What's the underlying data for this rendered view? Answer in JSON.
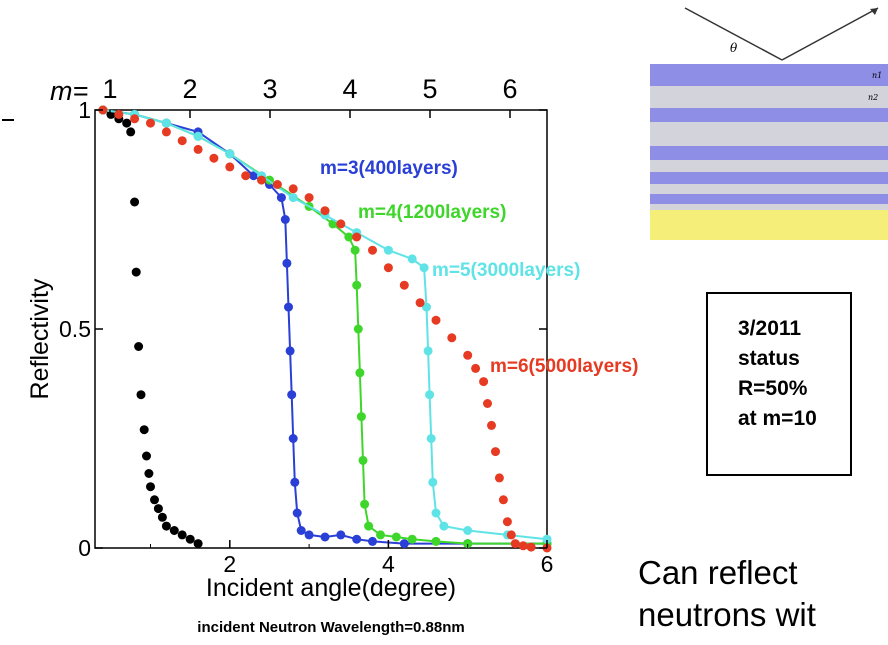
{
  "chart_data": {
    "type": "scatter",
    "title": "",
    "xlabel": "Incident angle(degree)",
    "ylabel": "Reflectivity",
    "xlim": [
      0.3,
      6.0
    ],
    "ylim": [
      0,
      1.0
    ],
    "x_ticks": [
      2,
      4,
      6
    ],
    "y_ticks": [
      0,
      0.5,
      1
    ],
    "y_tick_labels": [
      "0",
      "0.5",
      "1"
    ],
    "top_axis_prefix": "m=",
    "top_axis_ticks": [
      {
        "label": "1",
        "x": 0.59
      },
      {
        "label": "2",
        "x": 1.18
      },
      {
        "label": "3",
        "x": 1.77
      },
      {
        "label": "4",
        "x": 2.36
      },
      {
        "label": "5",
        "x": 2.95
      },
      {
        "label": "6",
        "x": 3.54
      }
    ],
    "note": "incident Neutron Wavelength=0.88nm",
    "grid": false,
    "series": [
      {
        "name": "",
        "color": "#000000",
        "style": "points",
        "points": [
          [
            0.4,
            1.0
          ],
          [
            0.5,
            0.99
          ],
          [
            0.6,
            0.98
          ],
          [
            0.7,
            0.97
          ],
          [
            0.75,
            0.95
          ],
          [
            0.8,
            0.79
          ],
          [
            0.82,
            0.63
          ],
          [
            0.85,
            0.46
          ],
          [
            0.88,
            0.35
          ],
          [
            0.92,
            0.27
          ],
          [
            0.95,
            0.21
          ],
          [
            0.98,
            0.17
          ],
          [
            1.0,
            0.14
          ],
          [
            1.05,
            0.11
          ],
          [
            1.1,
            0.09
          ],
          [
            1.15,
            0.07
          ],
          [
            1.2,
            0.05
          ],
          [
            1.3,
            0.04
          ],
          [
            1.4,
            0.03
          ],
          [
            1.5,
            0.02
          ],
          [
            1.6,
            0.01
          ]
        ]
      },
      {
        "name": "m=3(400layers)",
        "color": "#2a3fd6",
        "style": "line+points",
        "points": [
          [
            0.4,
            1.0
          ],
          [
            0.8,
            0.99
          ],
          [
            1.2,
            0.97
          ],
          [
            1.6,
            0.95
          ],
          [
            2.0,
            0.9
          ],
          [
            2.3,
            0.85
          ],
          [
            2.5,
            0.83
          ],
          [
            2.65,
            0.8
          ],
          [
            2.7,
            0.75
          ],
          [
            2.72,
            0.65
          ],
          [
            2.74,
            0.55
          ],
          [
            2.76,
            0.45
          ],
          [
            2.78,
            0.35
          ],
          [
            2.8,
            0.25
          ],
          [
            2.82,
            0.15
          ],
          [
            2.85,
            0.08
          ],
          [
            2.9,
            0.04
          ],
          [
            3.0,
            0.03
          ],
          [
            3.2,
            0.025
          ],
          [
            3.4,
            0.03
          ],
          [
            3.6,
            0.02
          ],
          [
            3.8,
            0.015
          ],
          [
            4.2,
            0.01
          ],
          [
            5.0,
            0.01
          ],
          [
            6.0,
            0.01
          ]
        ]
      },
      {
        "name": "m=4(1200layers)",
        "color": "#3ed62a",
        "style": "line+points",
        "points": [
          [
            0.4,
            1.0
          ],
          [
            0.8,
            0.99
          ],
          [
            1.2,
            0.97
          ],
          [
            1.6,
            0.94
          ],
          [
            2.0,
            0.9
          ],
          [
            2.5,
            0.84
          ],
          [
            3.0,
            0.78
          ],
          [
            3.3,
            0.74
          ],
          [
            3.5,
            0.71
          ],
          [
            3.58,
            0.68
          ],
          [
            3.6,
            0.6
          ],
          [
            3.62,
            0.5
          ],
          [
            3.64,
            0.4
          ],
          [
            3.66,
            0.3
          ],
          [
            3.68,
            0.2
          ],
          [
            3.7,
            0.1
          ],
          [
            3.75,
            0.05
          ],
          [
            3.9,
            0.03
          ],
          [
            4.1,
            0.025
          ],
          [
            4.3,
            0.02
          ],
          [
            4.6,
            0.015
          ],
          [
            5.0,
            0.01
          ],
          [
            6.0,
            0.01
          ]
        ]
      },
      {
        "name": "m=5(3000layers)",
        "color": "#5fe3e6",
        "style": "line+points",
        "points": [
          [
            0.4,
            1.0
          ],
          [
            0.8,
            0.99
          ],
          [
            1.2,
            0.97
          ],
          [
            1.6,
            0.94
          ],
          [
            2.0,
            0.9
          ],
          [
            2.4,
            0.85
          ],
          [
            2.8,
            0.8
          ],
          [
            3.2,
            0.76
          ],
          [
            3.6,
            0.72
          ],
          [
            4.0,
            0.68
          ],
          [
            4.3,
            0.66
          ],
          [
            4.45,
            0.64
          ],
          [
            4.48,
            0.55
          ],
          [
            4.5,
            0.45
          ],
          [
            4.52,
            0.35
          ],
          [
            4.54,
            0.25
          ],
          [
            4.56,
            0.15
          ],
          [
            4.6,
            0.08
          ],
          [
            4.7,
            0.05
          ],
          [
            5.0,
            0.04
          ],
          [
            5.5,
            0.03
          ],
          [
            6.0,
            0.02
          ]
        ]
      },
      {
        "name": "m=6(5000layers)",
        "color": "#e63a22",
        "style": "points",
        "points": [
          [
            0.4,
            1.0
          ],
          [
            0.6,
            0.99
          ],
          [
            0.8,
            0.98
          ],
          [
            1.0,
            0.97
          ],
          [
            1.2,
            0.95
          ],
          [
            1.4,
            0.93
          ],
          [
            1.6,
            0.91
          ],
          [
            1.8,
            0.89
          ],
          [
            2.0,
            0.87
          ],
          [
            2.2,
            0.85
          ],
          [
            2.4,
            0.84
          ],
          [
            2.6,
            0.83
          ],
          [
            2.8,
            0.82
          ],
          [
            3.0,
            0.8
          ],
          [
            3.2,
            0.77
          ],
          [
            3.4,
            0.74
          ],
          [
            3.6,
            0.71
          ],
          [
            3.8,
            0.68
          ],
          [
            4.0,
            0.64
          ],
          [
            4.2,
            0.6
          ],
          [
            4.4,
            0.56
          ],
          [
            4.6,
            0.52
          ],
          [
            4.8,
            0.48
          ],
          [
            5.0,
            0.44
          ],
          [
            5.1,
            0.41
          ],
          [
            5.2,
            0.38
          ],
          [
            5.25,
            0.33
          ],
          [
            5.3,
            0.28
          ],
          [
            5.35,
            0.22
          ],
          [
            5.4,
            0.16
          ],
          [
            5.45,
            0.11
          ],
          [
            5.5,
            0.06
          ],
          [
            5.55,
            0.03
          ],
          [
            5.6,
            0.01
          ],
          [
            5.7,
            0.005
          ],
          [
            5.8,
            0.002
          ],
          [
            6.0,
            0.0
          ]
        ]
      }
    ],
    "series_labels": [
      {
        "text": "m=3(400layers)",
        "color": "#2a3fd6"
      },
      {
        "text": "m=4(1200layers)",
        "color": "#3ed62a"
      },
      {
        "text": "m=5(3000layers)",
        "color": "#5fe3e6"
      },
      {
        "text": "m=6(5000layers)",
        "color": "#e63a22"
      }
    ]
  },
  "diagram": {
    "theta": "θ",
    "n1": "n1",
    "n2": "n2",
    "layer_colors": {
      "dark": "#8e8ee6",
      "light": "#d3d3dc",
      "substrate": "#f5ef7a"
    }
  },
  "status_box": {
    "lines": [
      "3/2011",
      "status",
      "R=50%",
      "at m=10"
    ]
  },
  "caption": {
    "line1": "Can reflect",
    "line2": "neutrons wit"
  }
}
